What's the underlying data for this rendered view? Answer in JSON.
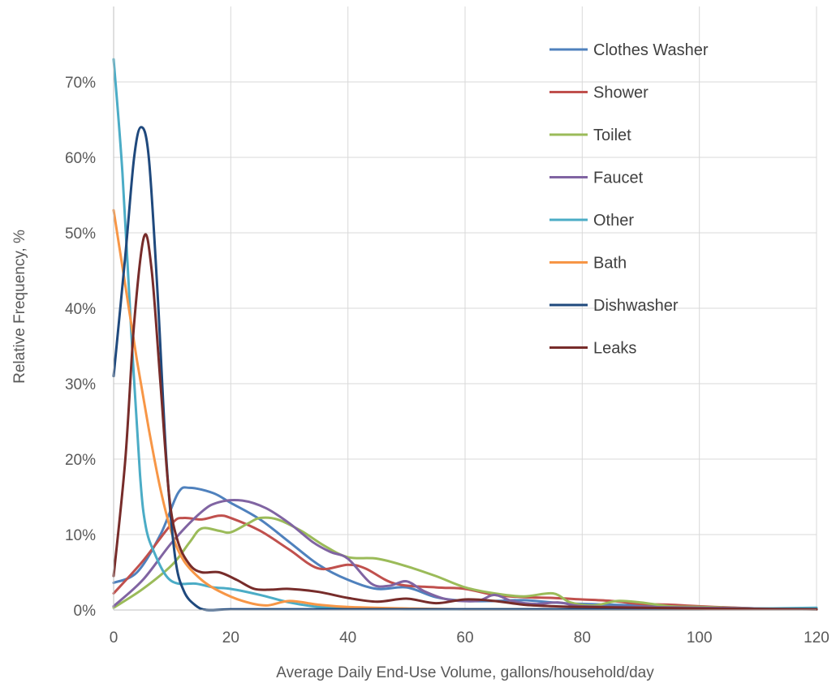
{
  "chart_data": {
    "type": "line",
    "xlabel": "Average Daily End-Use Volume, gallons/household/day",
    "ylabel": "Relative Frequency, %",
    "xlim": [
      0,
      120
    ],
    "ylim": [
      0,
      0.8
    ],
    "x_ticks": [
      0,
      20,
      40,
      60,
      80,
      100,
      120
    ],
    "y_ticks": [
      0,
      0.1,
      0.2,
      0.3,
      0.4,
      0.5,
      0.6,
      0.7
    ],
    "x_tick_labels": [
      "0",
      "20",
      "40",
      "60",
      "80",
      "100",
      "120"
    ],
    "y_tick_labels": [
      "0%",
      "10%",
      "20%",
      "30%",
      "40%",
      "50%",
      "60%",
      "70%"
    ],
    "grid": "major x and y",
    "legend_position": "top-right",
    "series": [
      {
        "name": "Clothes Washer",
        "color": "#4f81bd",
        "points": [
          [
            0,
            0.036
          ],
          [
            4,
            0.05
          ],
          [
            8,
            0.1
          ],
          [
            11,
            0.155
          ],
          [
            13,
            0.162
          ],
          [
            17,
            0.155
          ],
          [
            20,
            0.142
          ],
          [
            25,
            0.12
          ],
          [
            30,
            0.09
          ],
          [
            35,
            0.06
          ],
          [
            40,
            0.04
          ],
          [
            45,
            0.028
          ],
          [
            50,
            0.03
          ],
          [
            55,
            0.017
          ],
          [
            60,
            0.012
          ],
          [
            65,
            0.012
          ],
          [
            70,
            0.013
          ],
          [
            75,
            0.01
          ],
          [
            80,
            0.008
          ],
          [
            90,
            0.006
          ],
          [
            100,
            0.004
          ],
          [
            110,
            0.002
          ],
          [
            120,
            0.001
          ]
        ]
      },
      {
        "name": "Shower",
        "color": "#c0504d",
        "points": [
          [
            0,
            0.022
          ],
          [
            5,
            0.065
          ],
          [
            10,
            0.115
          ],
          [
            12,
            0.122
          ],
          [
            15,
            0.12
          ],
          [
            18,
            0.125
          ],
          [
            20,
            0.122
          ],
          [
            25,
            0.105
          ],
          [
            30,
            0.08
          ],
          [
            35,
            0.055
          ],
          [
            40,
            0.06
          ],
          [
            43,
            0.055
          ],
          [
            48,
            0.035
          ],
          [
            55,
            0.03
          ],
          [
            60,
            0.028
          ],
          [
            65,
            0.02
          ],
          [
            70,
            0.017
          ],
          [
            75,
            0.016
          ],
          [
            80,
            0.014
          ],
          [
            85,
            0.012
          ],
          [
            90,
            0.008
          ],
          [
            95,
            0.007
          ],
          [
            100,
            0.005
          ],
          [
            110,
            0.002
          ],
          [
            120,
            0.001
          ]
        ]
      },
      {
        "name": "Toilet",
        "color": "#9bbb59",
        "points": [
          [
            0,
            0.003
          ],
          [
            5,
            0.028
          ],
          [
            10,
            0.06
          ],
          [
            13,
            0.09
          ],
          [
            15,
            0.108
          ],
          [
            18,
            0.105
          ],
          [
            20,
            0.103
          ],
          [
            23,
            0.115
          ],
          [
            25,
            0.122
          ],
          [
            28,
            0.12
          ],
          [
            32,
            0.105
          ],
          [
            36,
            0.085
          ],
          [
            40,
            0.07
          ],
          [
            45,
            0.068
          ],
          [
            50,
            0.058
          ],
          [
            55,
            0.045
          ],
          [
            60,
            0.03
          ],
          [
            65,
            0.022
          ],
          [
            70,
            0.018
          ],
          [
            75,
            0.022
          ],
          [
            78,
            0.01
          ],
          [
            82,
            0.006
          ],
          [
            86,
            0.012
          ],
          [
            90,
            0.01
          ],
          [
            95,
            0.005
          ],
          [
            100,
            0.004
          ],
          [
            110,
            0.002
          ],
          [
            120,
            0.001
          ]
        ]
      },
      {
        "name": "Faucet",
        "color": "#8064a2",
        "points": [
          [
            0,
            0.005
          ],
          [
            5,
            0.04
          ],
          [
            10,
            0.09
          ],
          [
            15,
            0.13
          ],
          [
            18,
            0.143
          ],
          [
            22,
            0.145
          ],
          [
            26,
            0.135
          ],
          [
            30,
            0.115
          ],
          [
            34,
            0.09
          ],
          [
            37,
            0.077
          ],
          [
            40,
            0.068
          ],
          [
            44,
            0.035
          ],
          [
            47,
            0.032
          ],
          [
            50,
            0.038
          ],
          [
            53,
            0.025
          ],
          [
            57,
            0.014
          ],
          [
            62,
            0.012
          ],
          [
            65,
            0.02
          ],
          [
            68,
            0.012
          ],
          [
            72,
            0.008
          ],
          [
            76,
            0.01
          ],
          [
            80,
            0.005
          ],
          [
            90,
            0.004
          ],
          [
            100,
            0.003
          ],
          [
            110,
            0.002
          ],
          [
            120,
            0.001
          ]
        ]
      },
      {
        "name": "Other",
        "color": "#4bacc6",
        "points": [
          [
            0,
            0.73
          ],
          [
            1.5,
            0.58
          ],
          [
            3,
            0.37
          ],
          [
            4.5,
            0.18
          ],
          [
            5.5,
            0.11
          ],
          [
            7,
            0.075
          ],
          [
            9,
            0.045
          ],
          [
            11,
            0.035
          ],
          [
            14,
            0.035
          ],
          [
            17,
            0.03
          ],
          [
            20,
            0.028
          ],
          [
            25,
            0.02
          ],
          [
            30,
            0.01
          ],
          [
            35,
            0.004
          ],
          [
            40,
            0.002
          ],
          [
            50,
            0.001
          ],
          [
            60,
            0.001
          ],
          [
            80,
            0.001
          ],
          [
            100,
            0.001
          ],
          [
            120,
            0.003
          ]
        ]
      },
      {
        "name": "Bath",
        "color": "#f79646",
        "points": [
          [
            0,
            0.53
          ],
          [
            2,
            0.43
          ],
          [
            4,
            0.33
          ],
          [
            6,
            0.24
          ],
          [
            8,
            0.16
          ],
          [
            10,
            0.1
          ],
          [
            12,
            0.065
          ],
          [
            15,
            0.04
          ],
          [
            18,
            0.025
          ],
          [
            22,
            0.012
          ],
          [
            26,
            0.006
          ],
          [
            30,
            0.012
          ],
          [
            35,
            0.007
          ],
          [
            40,
            0.004
          ],
          [
            50,
            0.002
          ],
          [
            60,
            0.001
          ],
          [
            80,
            0.001
          ],
          [
            100,
            0.001
          ],
          [
            120,
            0.001
          ]
        ]
      },
      {
        "name": "Dishwasher",
        "color": "#1f497d",
        "points": [
          [
            0,
            0.31
          ],
          [
            2,
            0.47
          ],
          [
            3.5,
            0.6
          ],
          [
            4.7,
            0.64
          ],
          [
            6,
            0.6
          ],
          [
            7.5,
            0.42
          ],
          [
            9,
            0.2
          ],
          [
            10.5,
            0.07
          ],
          [
            12,
            0.025
          ],
          [
            14,
            0.006
          ],
          [
            16,
            0.0
          ],
          [
            20,
            0.001
          ],
          [
            30,
            0.001
          ],
          [
            50,
            0.001
          ],
          [
            80,
            0.001
          ],
          [
            120,
            0.001
          ]
        ]
      },
      {
        "name": "Leaks",
        "color": "#772c2a",
        "points": [
          [
            0,
            0.045
          ],
          [
            2,
            0.2
          ],
          [
            3.5,
            0.38
          ],
          [
            5.2,
            0.495
          ],
          [
            6.5,
            0.45
          ],
          [
            8,
            0.3
          ],
          [
            9.5,
            0.15
          ],
          [
            11,
            0.09
          ],
          [
            13,
            0.06
          ],
          [
            15,
            0.05
          ],
          [
            18,
            0.05
          ],
          [
            21,
            0.04
          ],
          [
            24,
            0.028
          ],
          [
            27,
            0.027
          ],
          [
            30,
            0.028
          ],
          [
            35,
            0.024
          ],
          [
            40,
            0.016
          ],
          [
            45,
            0.011
          ],
          [
            50,
            0.015
          ],
          [
            55,
            0.009
          ],
          [
            60,
            0.014
          ],
          [
            65,
            0.012
          ],
          [
            70,
            0.007
          ],
          [
            75,
            0.005
          ],
          [
            80,
            0.004
          ],
          [
            90,
            0.003
          ],
          [
            100,
            0.002
          ],
          [
            120,
            0.001
          ]
        ]
      }
    ]
  }
}
